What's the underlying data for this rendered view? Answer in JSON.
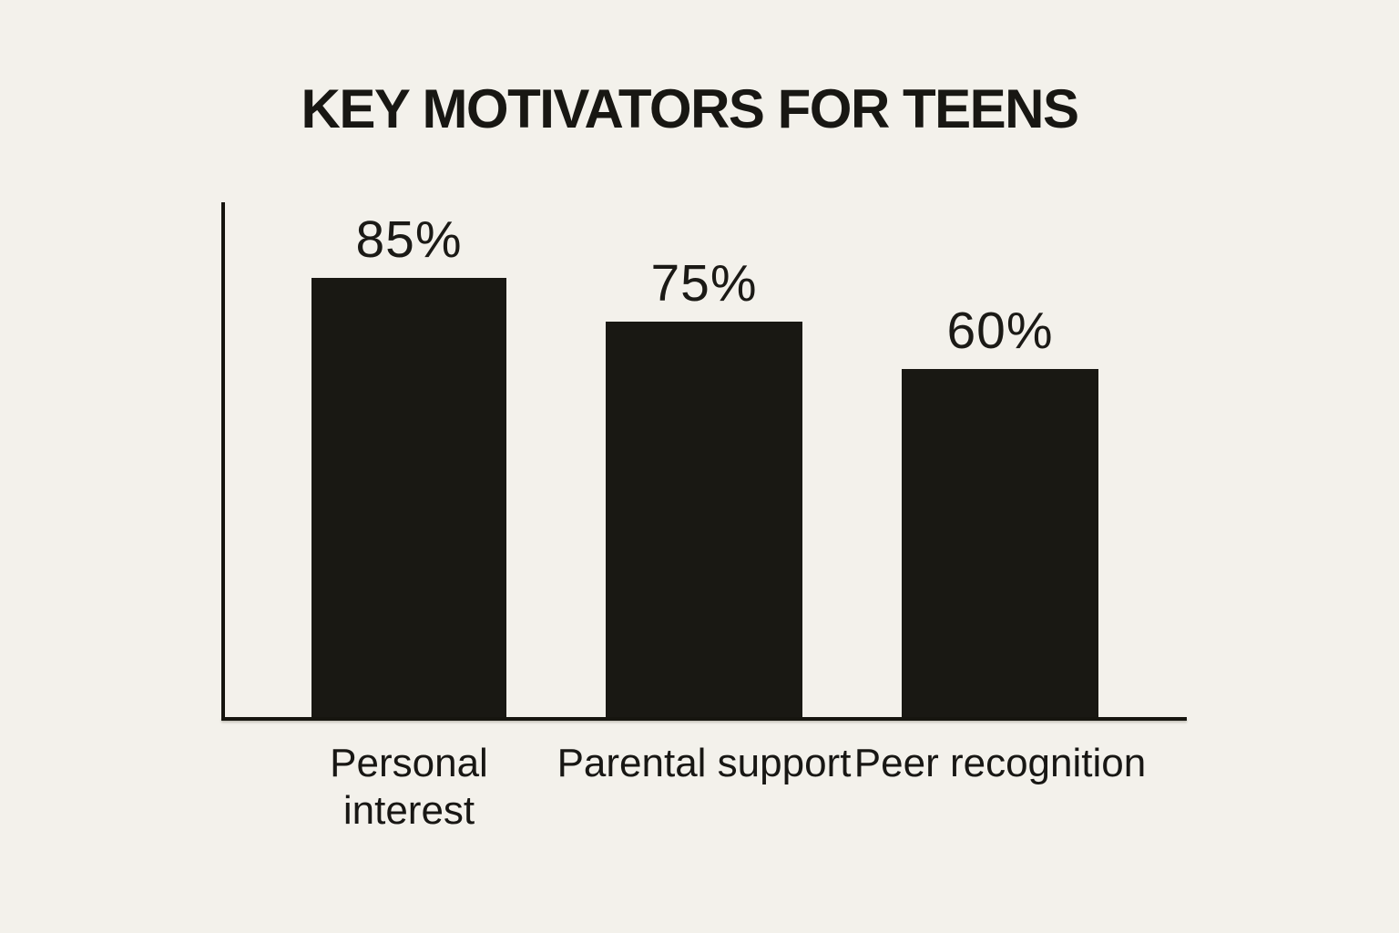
{
  "chart_data": {
    "type": "bar",
    "title": "KEY MOTIVATORS FOR TEENS",
    "categories": [
      "Personal interest",
      "Parental support",
      "Peer recognition"
    ],
    "values": [
      85,
      75,
      60
    ],
    "value_labels": [
      "85%",
      "75%",
      "60%"
    ],
    "unit": "%",
    "xlabel": "",
    "ylabel": "",
    "ylim": [
      0,
      100
    ],
    "grid": false,
    "legend": false,
    "tick_labels_visible": false,
    "axis_style": "L-shaped, no ticks, values shown above bars"
  },
  "colors": {
    "background": "#F3F1EB",
    "bar": "#191813",
    "axis": "#16150F",
    "text": "#1A1915"
  }
}
